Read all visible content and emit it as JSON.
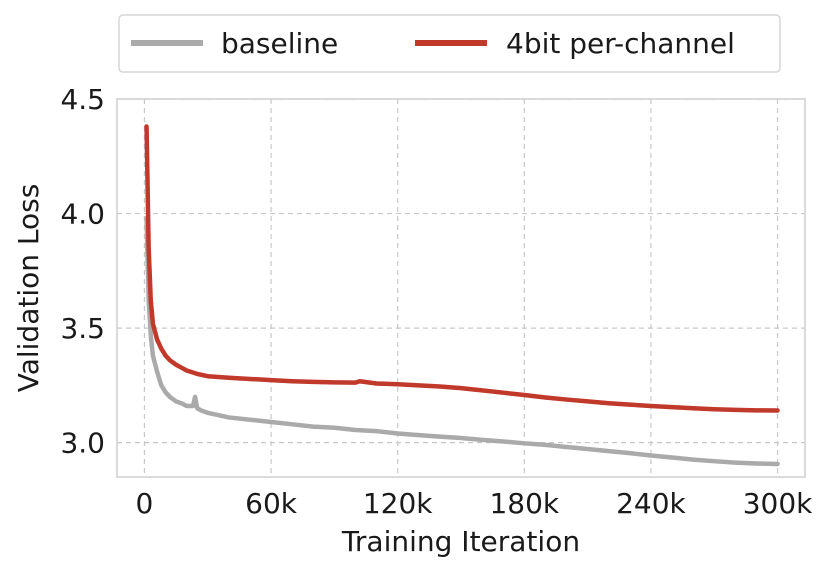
{
  "chart_data": {
    "type": "line",
    "xlabel": "Training Iteration",
    "ylabel": "Validation Loss",
    "xlim": [
      -13000,
      313000
    ],
    "ylim": [
      2.85,
      4.5
    ],
    "grid": true,
    "legend_position": "top",
    "x_ticks": [
      {
        "value": 0,
        "label": "0"
      },
      {
        "value": 60000,
        "label": "60k"
      },
      {
        "value": 120000,
        "label": "120k"
      },
      {
        "value": 180000,
        "label": "180k"
      },
      {
        "value": 240000,
        "label": "240k"
      },
      {
        "value": 300000,
        "label": "300k"
      }
    ],
    "y_ticks": [
      {
        "value": 3.0,
        "label": "3.0"
      },
      {
        "value": 3.5,
        "label": "3.5"
      },
      {
        "value": 4.0,
        "label": "4.0"
      },
      {
        "value": 4.5,
        "label": "4.5"
      }
    ],
    "series": [
      {
        "name": "baseline",
        "color": "#aaaaaa",
        "x": [
          1000,
          2000,
          3000,
          4000,
          6000,
          8000,
          10000,
          12000,
          15000,
          18000,
          20000,
          23000,
          24000,
          25000,
          27000,
          30000,
          40000,
          50000,
          60000,
          70000,
          80000,
          90000,
          100000,
          110000,
          120000,
          130000,
          140000,
          150000,
          160000,
          170000,
          180000,
          190000,
          200000,
          210000,
          220000,
          230000,
          240000,
          250000,
          260000,
          270000,
          280000,
          290000,
          300000
        ],
        "values": [
          3.98,
          3.62,
          3.47,
          3.38,
          3.31,
          3.25,
          3.22,
          3.2,
          3.18,
          3.17,
          3.16,
          3.16,
          3.2,
          3.15,
          3.14,
          3.13,
          3.11,
          3.1,
          3.09,
          3.08,
          3.07,
          3.065,
          3.055,
          3.05,
          3.04,
          3.033,
          3.026,
          3.02,
          3.012,
          3.005,
          2.997,
          2.99,
          2.981,
          2.972,
          2.963,
          2.954,
          2.944,
          2.935,
          2.926,
          2.919,
          2.913,
          2.909,
          2.907
        ]
      },
      {
        "name": "4bit per-channel",
        "color": "#c0392b",
        "x": [
          1000,
          2000,
          3000,
          4000,
          6000,
          8000,
          10000,
          12000,
          15000,
          18000,
          20000,
          25000,
          30000,
          40000,
          50000,
          60000,
          70000,
          80000,
          90000,
          100000,
          102000,
          110000,
          120000,
          130000,
          140000,
          150000,
          160000,
          170000,
          180000,
          190000,
          200000,
          210000,
          220000,
          230000,
          240000,
          250000,
          260000,
          270000,
          280000,
          290000,
          300000
        ],
        "values": [
          4.38,
          3.85,
          3.62,
          3.52,
          3.45,
          3.41,
          3.38,
          3.36,
          3.34,
          3.325,
          3.315,
          3.3,
          3.29,
          3.283,
          3.278,
          3.273,
          3.268,
          3.265,
          3.263,
          3.262,
          3.268,
          3.258,
          3.255,
          3.25,
          3.245,
          3.238,
          3.228,
          3.218,
          3.208,
          3.197,
          3.188,
          3.18,
          3.172,
          3.166,
          3.16,
          3.155,
          3.15,
          3.146,
          3.143,
          3.141,
          3.14
        ]
      }
    ]
  }
}
